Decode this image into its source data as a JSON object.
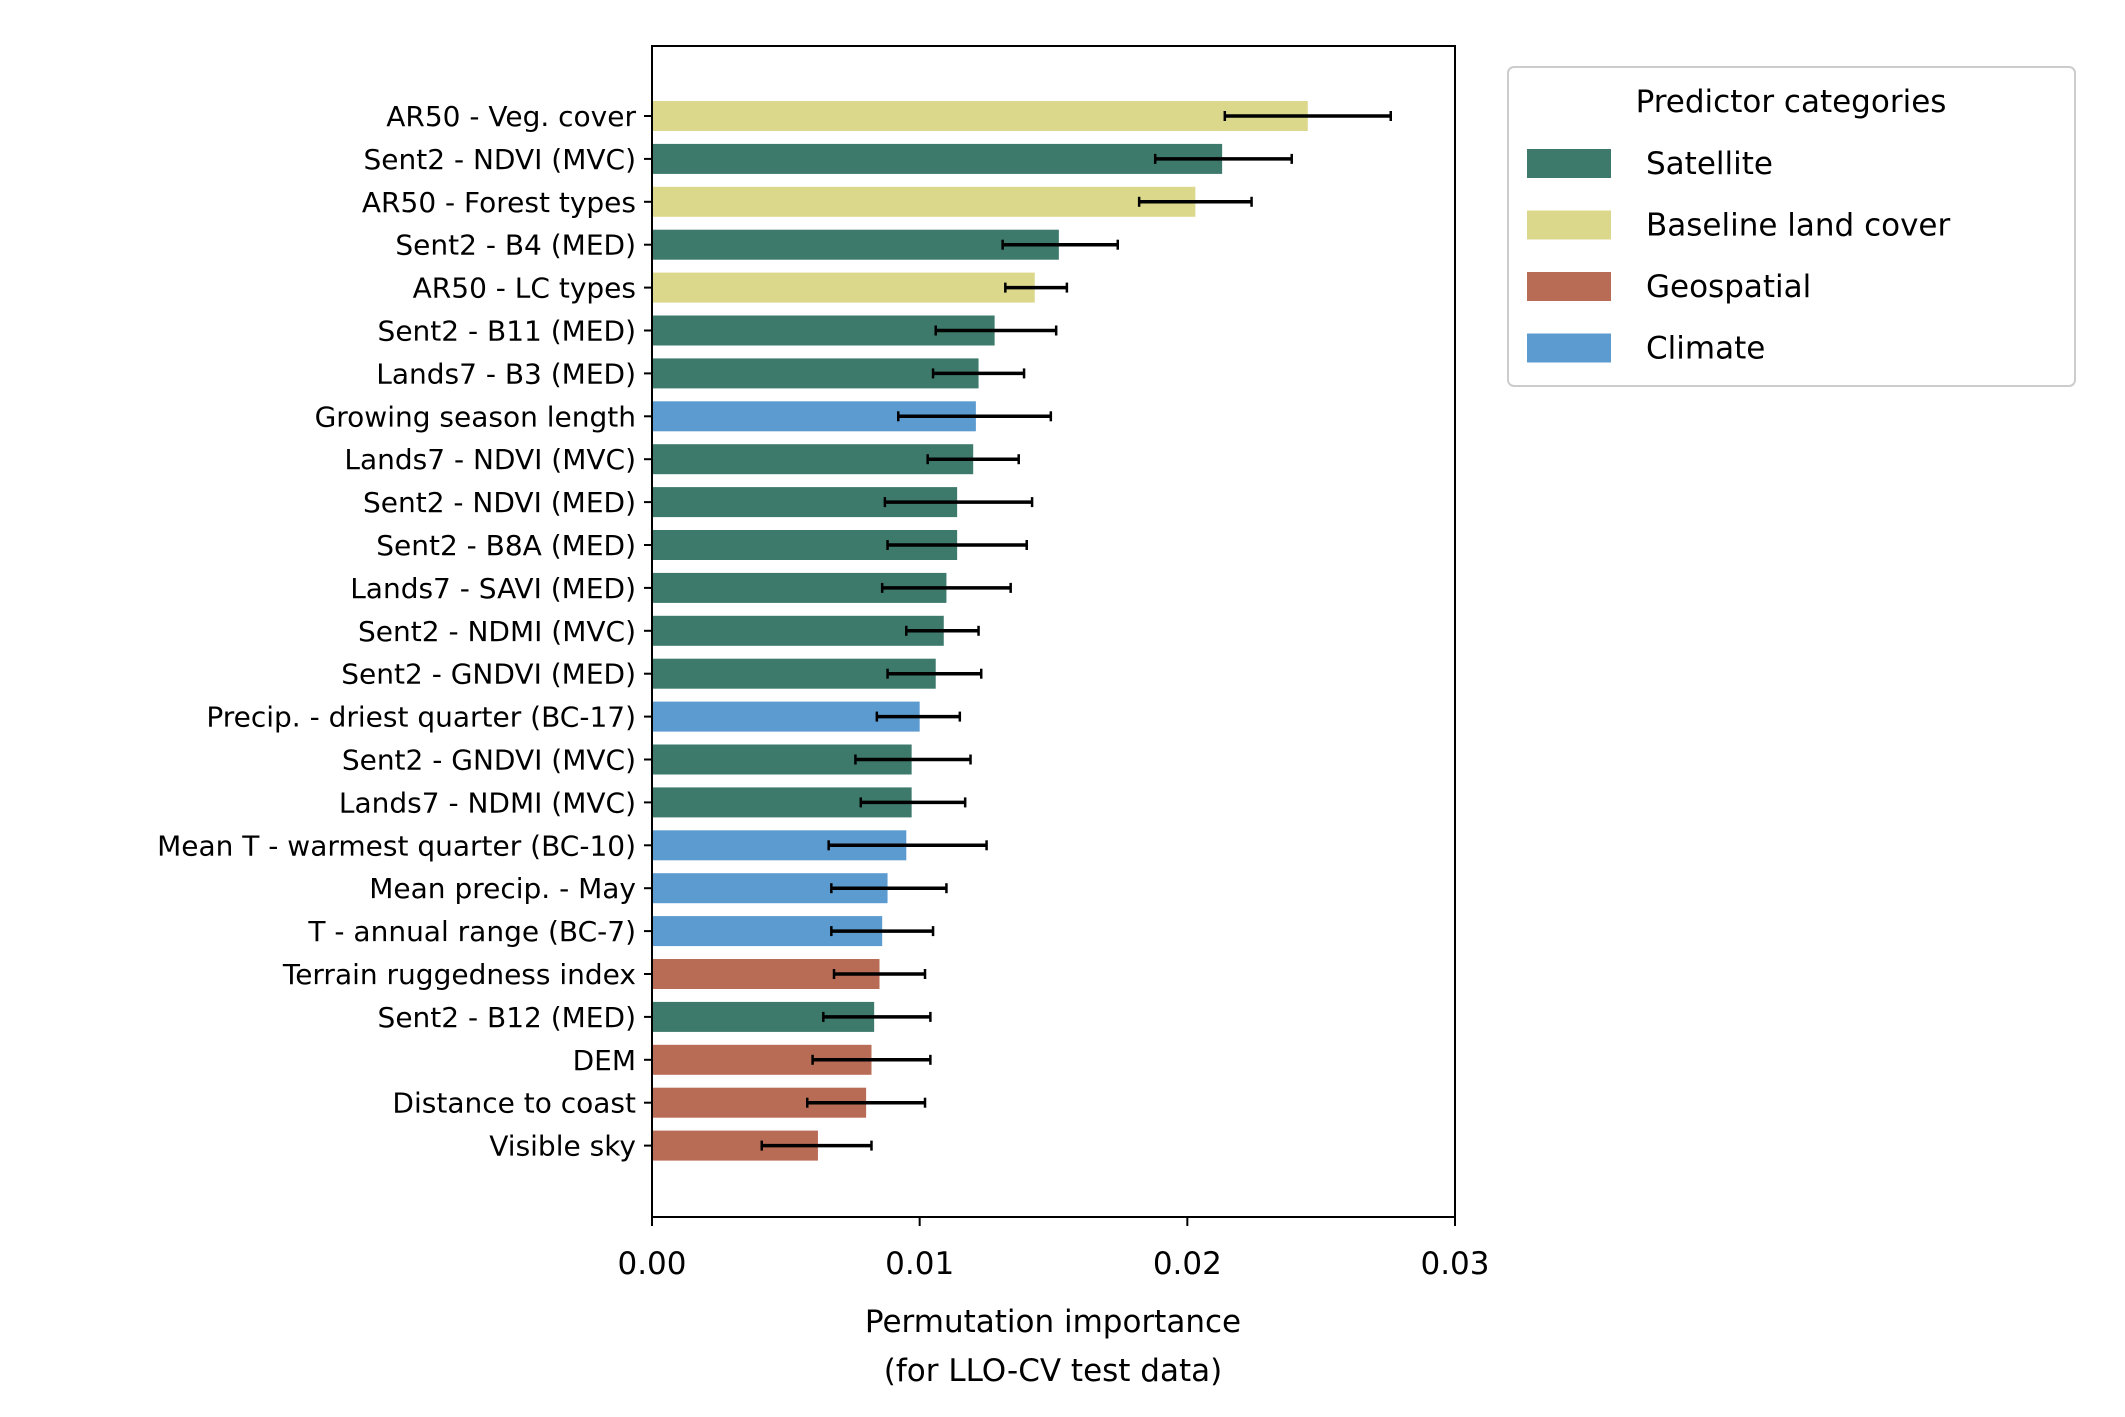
{
  "chart_data": {
    "type": "bar",
    "orientation": "horizontal",
    "xlabel_line1": "Permutation importance",
    "xlabel_line2": "(for LLO-CV test data)",
    "xlim": [
      0,
      0.03
    ],
    "xticks": [
      "0.00",
      "0.01",
      "0.02",
      "0.03"
    ],
    "legend": {
      "title": "Predictor categories",
      "placement": "outside top-right",
      "entries": [
        {
          "name": "Satellite",
          "color": "#3d7a6c"
        },
        {
          "name": "Baseline land cover",
          "color": "#dbd88c"
        },
        {
          "name": "Geospatial",
          "color": "#b96c55"
        },
        {
          "name": "Climate",
          "color": "#5b9bd0"
        }
      ]
    },
    "bars": [
      {
        "label": "AR50 - Veg. cover",
        "value": 0.0245,
        "err_low": 0.0214,
        "err_high": 0.0276,
        "category": "Baseline land cover"
      },
      {
        "label": "Sent2 - NDVI (MVC)",
        "value": 0.0213,
        "err_low": 0.0188,
        "err_high": 0.0239,
        "category": "Satellite"
      },
      {
        "label": "AR50 - Forest types",
        "value": 0.0203,
        "err_low": 0.0182,
        "err_high": 0.0224,
        "category": "Baseline land cover"
      },
      {
        "label": "Sent2 - B4 (MED)",
        "value": 0.0152,
        "err_low": 0.0131,
        "err_high": 0.0174,
        "category": "Satellite"
      },
      {
        "label": "AR50 - LC types",
        "value": 0.0143,
        "err_low": 0.0132,
        "err_high": 0.0155,
        "category": "Baseline land cover"
      },
      {
        "label": "Sent2 - B11 (MED)",
        "value": 0.0128,
        "err_low": 0.0106,
        "err_high": 0.0151,
        "category": "Satellite"
      },
      {
        "label": "Lands7 - B3 (MED)",
        "value": 0.0122,
        "err_low": 0.0105,
        "err_high": 0.0139,
        "category": "Satellite"
      },
      {
        "label": "Growing season length",
        "value": 0.0121,
        "err_low": 0.0092,
        "err_high": 0.0149,
        "category": "Climate"
      },
      {
        "label": "Lands7 - NDVI (MVC)",
        "value": 0.012,
        "err_low": 0.0103,
        "err_high": 0.0137,
        "category": "Satellite"
      },
      {
        "label": "Sent2 - NDVI (MED)",
        "value": 0.0114,
        "err_low": 0.0087,
        "err_high": 0.0142,
        "category": "Satellite"
      },
      {
        "label": "Sent2 - B8A (MED)",
        "value": 0.0114,
        "err_low": 0.0088,
        "err_high": 0.014,
        "category": "Satellite"
      },
      {
        "label": "Lands7 - SAVI (MED)",
        "value": 0.011,
        "err_low": 0.0086,
        "err_high": 0.0134,
        "category": "Satellite"
      },
      {
        "label": "Sent2 - NDMI (MVC)",
        "value": 0.0109,
        "err_low": 0.0095,
        "err_high": 0.0122,
        "category": "Satellite"
      },
      {
        "label": "Sent2 - GNDVI (MED)",
        "value": 0.0106,
        "err_low": 0.0088,
        "err_high": 0.0123,
        "category": "Satellite"
      },
      {
        "label": "Precip. - driest quarter (BC-17)",
        "value": 0.01,
        "err_low": 0.0084,
        "err_high": 0.0115,
        "category": "Climate"
      },
      {
        "label": "Sent2 - GNDVI (MVC)",
        "value": 0.0097,
        "err_low": 0.0076,
        "err_high": 0.0119,
        "category": "Satellite"
      },
      {
        "label": "Lands7 - NDMI (MVC)",
        "value": 0.0097,
        "err_low": 0.0078,
        "err_high": 0.0117,
        "category": "Satellite"
      },
      {
        "label": "Mean T - warmest quarter (BC-10)",
        "value": 0.0095,
        "err_low": 0.0066,
        "err_high": 0.0125,
        "category": "Climate"
      },
      {
        "label": "Mean precip. - May",
        "value": 0.0088,
        "err_low": 0.0067,
        "err_high": 0.011,
        "category": "Climate"
      },
      {
        "label": "T - annual range (BC-7)",
        "value": 0.0086,
        "err_low": 0.0067,
        "err_high": 0.0105,
        "category": "Climate"
      },
      {
        "label": "Terrain ruggedness index",
        "value": 0.0085,
        "err_low": 0.0068,
        "err_high": 0.0102,
        "category": "Geospatial"
      },
      {
        "label": "Sent2 - B12 (MED)",
        "value": 0.0083,
        "err_low": 0.0064,
        "err_high": 0.0104,
        "category": "Satellite"
      },
      {
        "label": "DEM",
        "value": 0.0082,
        "err_low": 0.006,
        "err_high": 0.0104,
        "category": "Geospatial"
      },
      {
        "label": "Distance to coast",
        "value": 0.008,
        "err_low": 0.0058,
        "err_high": 0.0102,
        "category": "Geospatial"
      },
      {
        "label": "Visible sky",
        "value": 0.0062,
        "err_low": 0.0041,
        "err_high": 0.0082,
        "category": "Geospatial"
      }
    ]
  }
}
